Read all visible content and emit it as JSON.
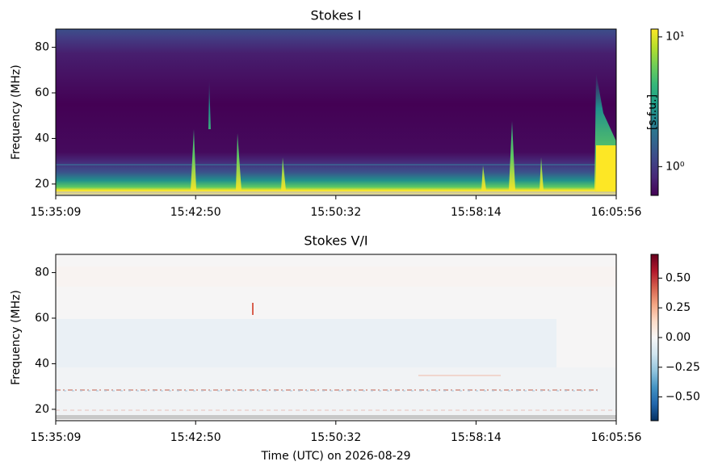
{
  "chart_data": [
    {
      "type": "heatmap",
      "title": "Stokes I",
      "ylabel": "Frequency (MHz)",
      "xlim": [
        56109,
        57956
      ],
      "xticks": [
        {
          "value": 56109,
          "label": "15:35:09"
        },
        {
          "value": 56570,
          "label": "15:42:50"
        },
        {
          "value": 57032,
          "label": "15:50:32"
        },
        {
          "value": 57494,
          "label": "15:58:14"
        },
        {
          "value": 57956,
          "label": "16:05:56"
        }
      ],
      "ylim": [
        15,
        88
      ],
      "yticks": [
        20,
        40,
        60,
        80
      ],
      "colorbar": {
        "label": "[s.f.u.]",
        "scale": "log",
        "colormap": "viridis",
        "lim": [
          0.6,
          11.5
        ],
        "ticks": [
          {
            "value": 1,
            "label": "10⁰"
          },
          {
            "value": 10,
            "label": "10¹"
          }
        ]
      }
    },
    {
      "type": "heatmap",
      "title": "Stokes V/I",
      "ylabel": "Frequency (MHz)",
      "xlabel": "Time (UTC) on 2026-08-29",
      "xlim": [
        56109,
        57956
      ],
      "xticks": [
        {
          "value": 56109,
          "label": "15:35:09"
        },
        {
          "value": 56570,
          "label": "15:42:50"
        },
        {
          "value": 57032,
          "label": "15:50:32"
        },
        {
          "value": 57494,
          "label": "15:58:14"
        },
        {
          "value": 57956,
          "label": "16:05:56"
        }
      ],
      "ylim": [
        15,
        88
      ],
      "yticks": [
        20,
        40,
        60,
        80
      ],
      "colorbar": {
        "scale": "linear",
        "colormap": "RdBu_r",
        "lim": [
          -0.7,
          0.7
        ],
        "ticks": [
          {
            "value": 0.5,
            "label": "0.50"
          },
          {
            "value": 0.25,
            "label": "0.25"
          },
          {
            "value": 0,
            "label": "0.00"
          },
          {
            "value": -0.25,
            "label": "−0.25"
          },
          {
            "value": -0.5,
            "label": "−0.50"
          }
        ]
      }
    }
  ]
}
